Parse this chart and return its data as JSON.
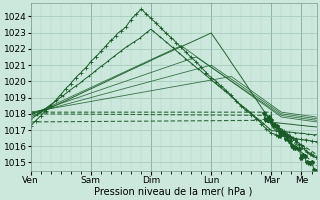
{
  "xlabel": "Pression niveau de la mer( hPa )",
  "background_color": "#cce8dd",
  "grid_color": "#a0c8b8",
  "line_color": "#1a5c28",
  "ylim": [
    1014.5,
    1024.8
  ],
  "yticks": [
    1015,
    1016,
    1017,
    1018,
    1019,
    1020,
    1021,
    1022,
    1023,
    1024
  ],
  "day_labels": [
    "Ven",
    "Sam",
    "Dim",
    "Lun",
    "Mar",
    "Me"
  ],
  "day_positions": [
    0,
    24,
    48,
    72,
    96,
    108
  ],
  "xlim": [
    0,
    114
  ]
}
